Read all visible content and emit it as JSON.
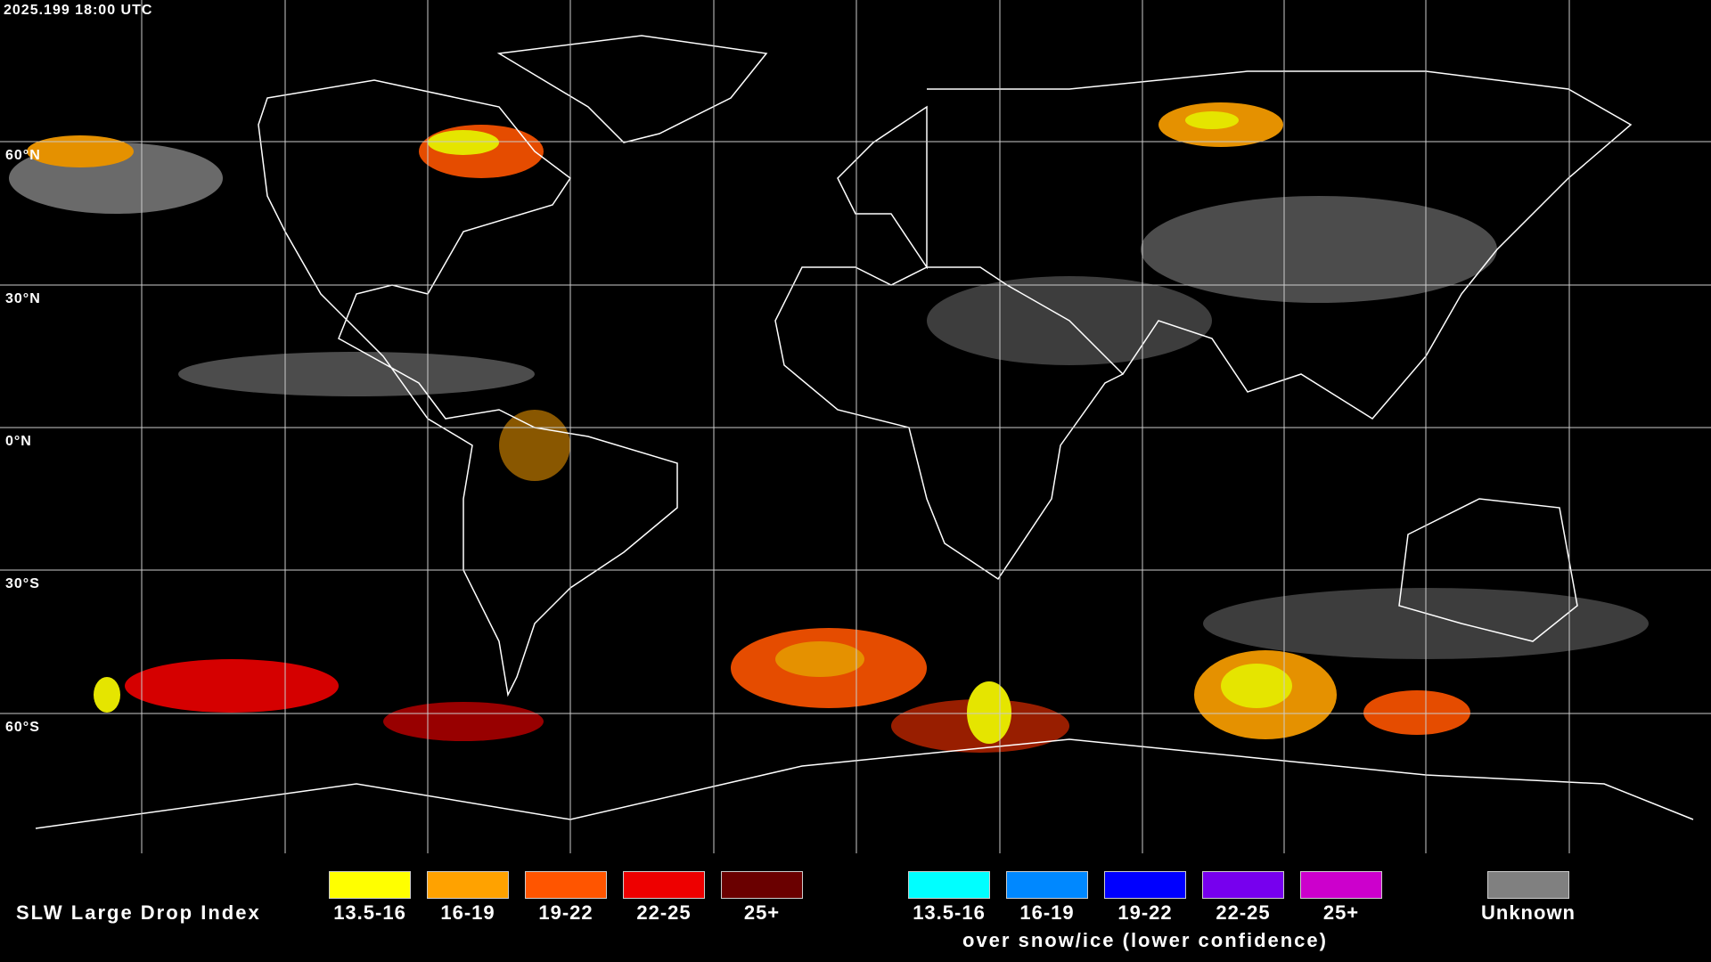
{
  "header": {
    "timestamp": "2025.199 18:00 UTC"
  },
  "latitude_labels": [
    "60°N",
    "30°N",
    "0°N",
    "30°S",
    "60°S"
  ],
  "legend": {
    "title": "SLW Large Drop Index",
    "items": [
      {
        "label": "13.5-16",
        "color": "#ffff00"
      },
      {
        "label": "16-19",
        "color": "#ffa200"
      },
      {
        "label": "19-22",
        "color": "#ff5500"
      },
      {
        "label": "22-25",
        "color": "#ee0000"
      },
      {
        "label": "25+",
        "color": "#6a0000"
      }
    ],
    "snow_items": [
      {
        "label": "13.5-16",
        "color": "#00ffff"
      },
      {
        "label": "16-19",
        "color": "#0088ff"
      },
      {
        "label": "19-22",
        "color": "#0000ff"
      },
      {
        "label": "22-25",
        "color": "#7700ee"
      },
      {
        "label": "25+",
        "color": "#cc00cc"
      }
    ],
    "snow_caption": "over snow/ice (lower confidence)",
    "unknown": {
      "label": "Unknown",
      "color": "#808080"
    }
  }
}
